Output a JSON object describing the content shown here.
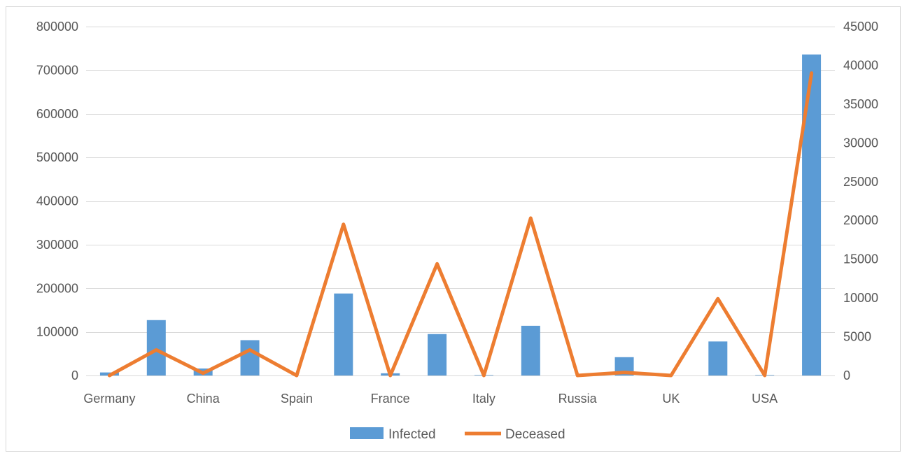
{
  "chart_data": {
    "type": "bar",
    "combo": "bar+line, dual y-axis",
    "categories": [
      "Germany",
      "",
      "China",
      "",
      "Spain",
      "",
      "France",
      "",
      "Italy",
      "",
      "Russia",
      "",
      "UK",
      "",
      "USA",
      ""
    ],
    "series": [
      {
        "name": "Infected",
        "type": "bar",
        "axis": "left",
        "color": "#5b9bd5",
        "values": [
          7000,
          127000,
          16000,
          81000,
          0,
          188000,
          5000,
          95000,
          1000,
          114000,
          0,
          42000,
          0,
          78000,
          1000,
          736000
        ]
      },
      {
        "name": "Deceased",
        "type": "line",
        "axis": "right",
        "color": "#ed7d31",
        "values": [
          0,
          3300,
          300,
          3300,
          0,
          19500,
          0,
          14400,
          0,
          20300,
          0,
          400,
          0,
          9900,
          0,
          39000
        ]
      }
    ],
    "y_left": {
      "min": 0,
      "max": 800000,
      "ticks": [
        "0",
        "100000",
        "200000",
        "300000",
        "400000",
        "500000",
        "600000",
        "700000",
        "800000"
      ]
    },
    "y_right": {
      "min": 0,
      "max": 45000,
      "ticks": [
        "0",
        "5000",
        "10000",
        "15000",
        "20000",
        "25000",
        "30000",
        "35000",
        "40000",
        "45000"
      ]
    },
    "grid": true,
    "legend_position": "bottom",
    "legend": [
      "Infected",
      "Deceased"
    ]
  }
}
